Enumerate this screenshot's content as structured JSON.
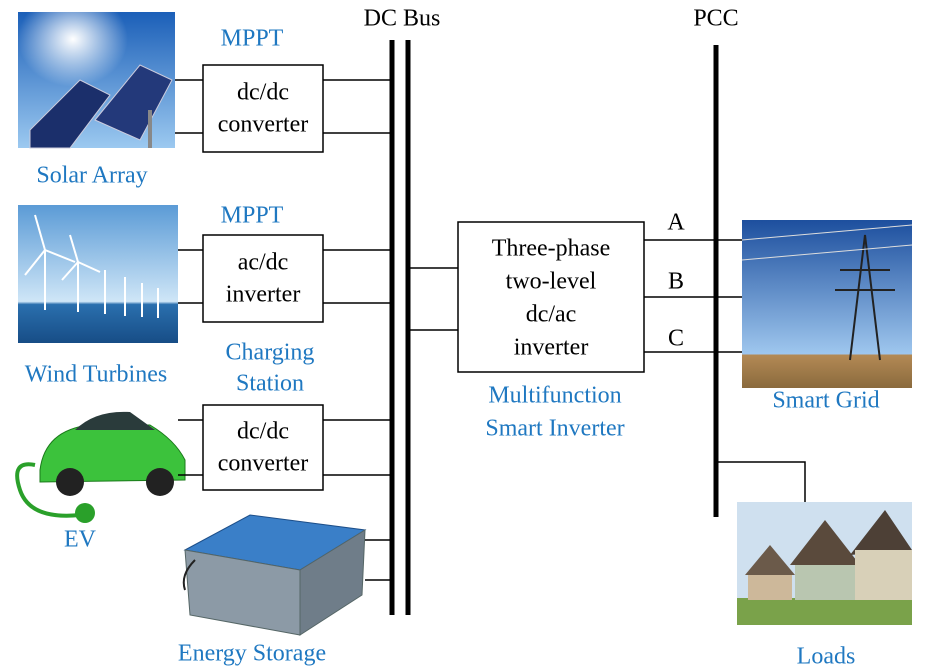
{
  "header": {
    "dc_bus": "DC Bus",
    "pcc": "PCC"
  },
  "nodes": [
    {
      "label": "Solar Array",
      "tag": "MPPT",
      "box": [
        "dc/dc",
        "converter"
      ]
    },
    {
      "label": "Wind Turbines",
      "tag": "MPPT",
      "box": [
        "ac/dc",
        "inverter"
      ]
    },
    {
      "label": "EV",
      "tag": [
        "Charging",
        "Station"
      ],
      "box": [
        "dc/dc",
        "converter"
      ]
    },
    {
      "label": "Energy Storage"
    }
  ],
  "inverter": {
    "box": [
      "Three-phase",
      "two-level",
      "dc/ac",
      "inverter"
    ],
    "label": [
      "Multifunction",
      "Smart Inverter"
    ],
    "phases": [
      "A",
      "B",
      "C"
    ]
  },
  "grid": {
    "label": "Smart Grid"
  },
  "loads": {
    "label": "Loads"
  }
}
